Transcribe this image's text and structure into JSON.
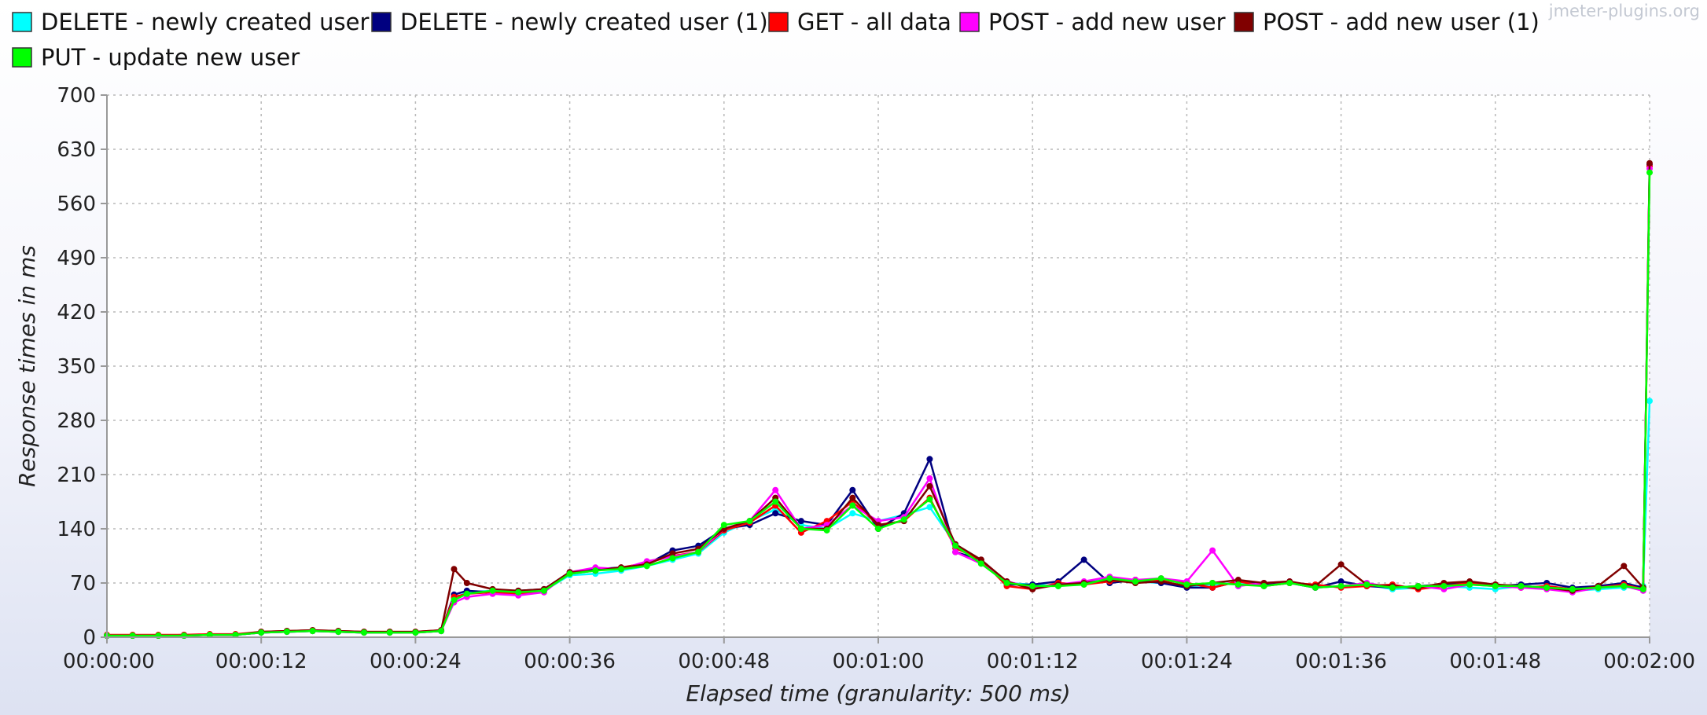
{
  "watermark": "jmeter-plugins.org",
  "chart_data": {
    "type": "line",
    "xlabel": "Elapsed time (granularity: 500 ms)",
    "ylabel": "Response times in ms",
    "x_unit": "seconds",
    "xlim": [
      0,
      120
    ],
    "ylim": [
      0,
      700
    ],
    "yticks": [
      0,
      70,
      140,
      210,
      280,
      350,
      420,
      490,
      560,
      630,
      700
    ],
    "xtick_labels": [
      "00:00:00",
      "00:00:12",
      "00:00:24",
      "00:00:36",
      "00:00:48",
      "00:01:00",
      "00:01:12",
      "00:01:24",
      "00:01:36",
      "00:01:48",
      "00:02:00"
    ],
    "grid": true,
    "legend_position": "top",
    "x": [
      0,
      2,
      4,
      6,
      8,
      10,
      12,
      14,
      16,
      18,
      20,
      22,
      24,
      26,
      27,
      28,
      30,
      32,
      34,
      36,
      38,
      40,
      42,
      44,
      46,
      48,
      50,
      52,
      54,
      56,
      58,
      60,
      62,
      64,
      66,
      68,
      70,
      72,
      74,
      76,
      78,
      80,
      82,
      84,
      86,
      88,
      90,
      92,
      94,
      96,
      98,
      100,
      102,
      104,
      106,
      108,
      110,
      112,
      114,
      116,
      118,
      119.5,
      120
    ],
    "series": [
      {
        "name": "DELETE - newly created user",
        "color": "#00ffff",
        "values": [
          2,
          2,
          2,
          2,
          3,
          3,
          6,
          7,
          8,
          7,
          6,
          6,
          6,
          8,
          50,
          58,
          60,
          58,
          60,
          80,
          82,
          86,
          92,
          100,
          108,
          135,
          150,
          165,
          145,
          140,
          160,
          150,
          158,
          168,
          120,
          100,
          70,
          68,
          66,
          70,
          76,
          72,
          70,
          66,
          68,
          70,
          66,
          70,
          64,
          66,
          68,
          62,
          64,
          66,
          64,
          62,
          66,
          64,
          60,
          62,
          64,
          66,
          305
        ]
      },
      {
        "name": "DELETE - newly created user (1)",
        "color": "#000080",
        "values": [
          2,
          2,
          2,
          3,
          3,
          3,
          6,
          7,
          8,
          7,
          6,
          6,
          6,
          8,
          55,
          60,
          58,
          60,
          62,
          84,
          88,
          90,
          94,
          112,
          118,
          140,
          145,
          160,
          150,
          145,
          190,
          140,
          160,
          230,
          110,
          100,
          68,
          68,
          72,
          100,
          70,
          74,
          70,
          64,
          64,
          72,
          68,
          70,
          64,
          72,
          66,
          64,
          66,
          68,
          70,
          66,
          68,
          70,
          64,
          66,
          70,
          64,
          610
        ]
      },
      {
        "name": "GET - all data",
        "color": "#ff0000",
        "values": [
          3,
          3,
          3,
          3,
          4,
          4,
          7,
          8,
          9,
          8,
          7,
          7,
          7,
          9,
          52,
          56,
          58,
          56,
          60,
          82,
          86,
          90,
          96,
          105,
          110,
          138,
          148,
          170,
          135,
          150,
          175,
          145,
          150,
          180,
          115,
          100,
          66,
          62,
          70,
          68,
          72,
          74,
          74,
          70,
          64,
          72,
          66,
          70,
          68,
          64,
          66,
          68,
          62,
          66,
          70,
          68,
          64,
          66,
          62,
          64,
          68,
          62,
          608
        ]
      },
      {
        "name": "POST - add new user",
        "color": "#ff00ff",
        "values": [
          2,
          2,
          2,
          2,
          3,
          3,
          6,
          7,
          8,
          7,
          6,
          6,
          6,
          8,
          45,
          52,
          56,
          54,
          58,
          84,
          90,
          88,
          98,
          104,
          110,
          140,
          150,
          190,
          140,
          145,
          170,
          150,
          155,
          205,
          110,
          95,
          72,
          64,
          68,
          72,
          78,
          74,
          76,
          72,
          112,
          66,
          70,
          72,
          64,
          66,
          70,
          64,
          66,
          62,
          68,
          66,
          64,
          62,
          58,
          64,
          66,
          60,
          605
        ]
      },
      {
        "name": "POST - add new user (1)",
        "color": "#800000",
        "values": [
          2,
          2,
          2,
          2,
          3,
          3,
          7,
          8,
          9,
          8,
          7,
          7,
          7,
          9,
          88,
          70,
          62,
          60,
          62,
          84,
          86,
          90,
          94,
          108,
          114,
          140,
          150,
          180,
          140,
          140,
          180,
          145,
          150,
          195,
          120,
          100,
          72,
          62,
          68,
          70,
          74,
          70,
          72,
          66,
          70,
          74,
          70,
          72,
          66,
          94,
          68,
          66,
          64,
          70,
          72,
          68,
          66,
          64,
          60,
          66,
          92,
          64,
          612
        ]
      },
      {
        "name": "PUT - update new user",
        "color": "#00ff00",
        "values": [
          2,
          2,
          2,
          2,
          3,
          3,
          6,
          7,
          8,
          7,
          6,
          6,
          6,
          8,
          48,
          56,
          60,
          58,
          60,
          82,
          86,
          88,
          92,
          102,
          110,
          145,
          150,
          175,
          140,
          138,
          170,
          140,
          152,
          178,
          118,
          95,
          70,
          66,
          66,
          68,
          76,
          72,
          76,
          68,
          70,
          68,
          66,
          70,
          64,
          66,
          68,
          64,
          66,
          66,
          68,
          66,
          66,
          64,
          62,
          64,
          66,
          62,
          600
        ]
      }
    ]
  }
}
